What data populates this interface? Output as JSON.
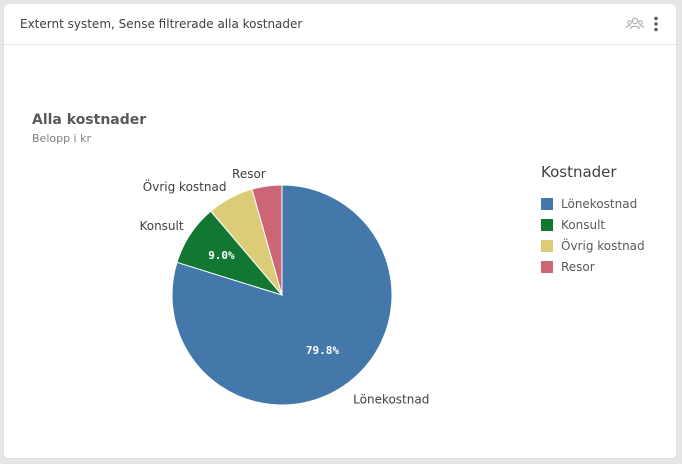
{
  "header": {
    "title": "Externt system, Sense filtrerade alla kostnader",
    "icons": [
      "people-icon",
      "more-vertical-icon"
    ]
  },
  "chart_data": {
    "type": "pie",
    "title": "Alla kostnader",
    "subtitle": "Belopp i kr",
    "legend_title": "Kostnader",
    "legend_position": "right",
    "categories": [
      "Lönekostnad",
      "Konsult",
      "Övrig kostnad",
      "Resor"
    ],
    "values": [
      79.8,
      9.0,
      6.8,
      4.4
    ],
    "value_labels": [
      "79.8%",
      "9.0%",
      "",
      ""
    ],
    "colors": [
      "#4477aa",
      "#117733",
      "#ddcc77",
      "#cc6677"
    ]
  }
}
